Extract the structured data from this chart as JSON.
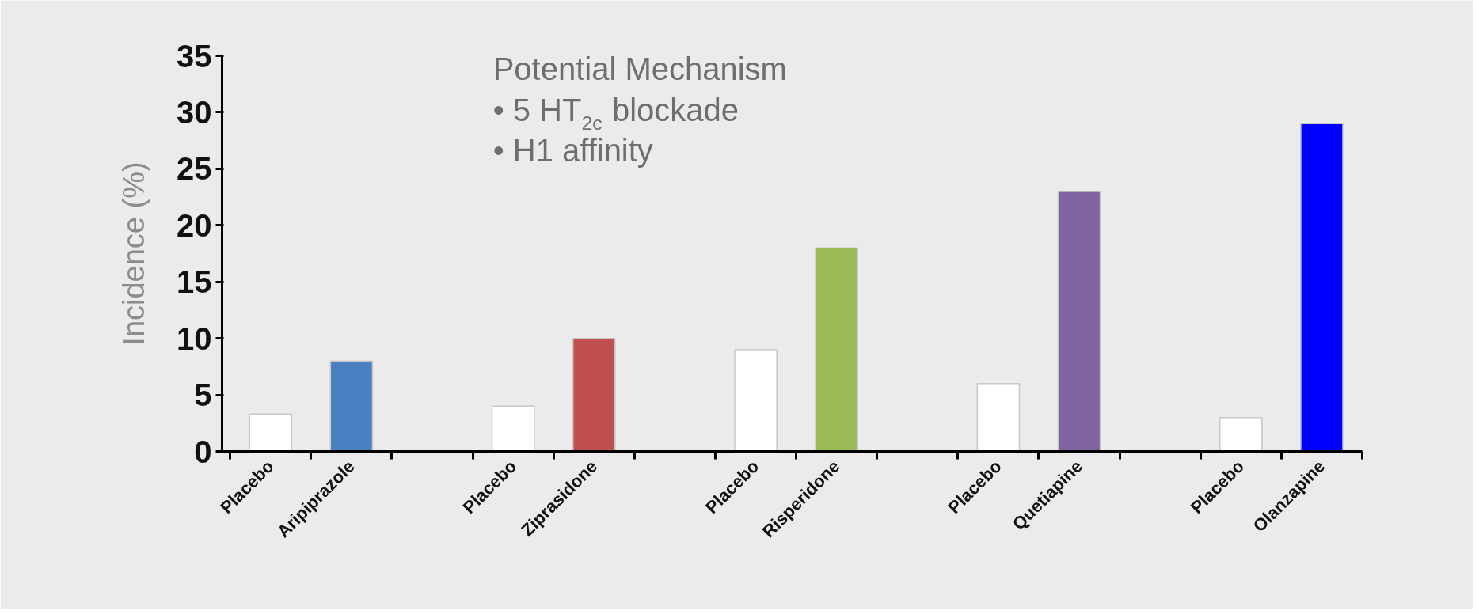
{
  "chart_data": {
    "type": "bar",
    "ylabel": "Incidence (%)",
    "categories": [
      "Placebo",
      "Aripiprazole",
      null,
      "Placebo",
      "Ziprasidone",
      null,
      "Placebo",
      "Risperidone",
      null,
      "Placebo",
      "Quetiapine",
      null,
      "Placebo",
      "Olanzapine"
    ],
    "values": [
      3.3,
      8,
      null,
      4,
      10,
      null,
      9,
      18,
      null,
      6,
      23,
      null,
      3,
      29
    ],
    "colors": [
      "#ffffff",
      "#4a7fc1",
      null,
      "#ffffff",
      "#c0504d",
      null,
      "#ffffff",
      "#9bbb59",
      null,
      "#ffffff",
      "#8064a2",
      null,
      "#ffffff",
      "#0000ff"
    ],
    "ylim": [
      0,
      35
    ],
    "yticks": [
      0,
      5,
      10,
      15,
      20,
      25,
      30,
      35
    ],
    "grid": false,
    "annotations": [
      "Potential Mechanism",
      "• 5 HT$_{2c}$ blockade",
      "• H1 affinity"
    ]
  }
}
